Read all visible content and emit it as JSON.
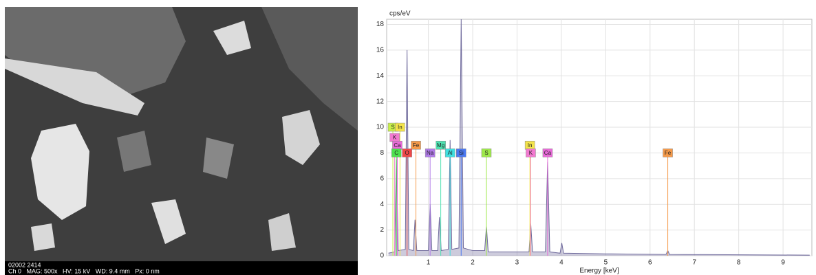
{
  "micrograph": {
    "caption_id": "02002 2414",
    "caption_info": "Ch 0   MAG: 500x   HV: 15 kV   WD: 9.4 mm   Px: 0 nm"
  },
  "chart_data": {
    "type": "line",
    "ylabel": "cps/eV",
    "xlabel": "Energy [keV]",
    "xlim": [
      0.06,
      9.65
    ],
    "ylim": [
      0,
      18.4
    ],
    "xticks": [
      1,
      2,
      3,
      4,
      5,
      6,
      7,
      8,
      9
    ],
    "yticks": [
      0,
      2,
      4,
      6,
      8,
      10,
      12,
      14,
      16,
      18
    ],
    "grid": true,
    "color": "#6f6a9c",
    "x": [
      0.1,
      0.24,
      0.28,
      0.32,
      0.48,
      0.52,
      0.56,
      0.66,
      0.7,
      0.74,
      1.0,
      1.04,
      1.08,
      1.21,
      1.25,
      1.29,
      1.45,
      1.49,
      1.53,
      1.69,
      1.74,
      1.79,
      2.0,
      2.27,
      2.31,
      2.35,
      3.0,
      3.27,
      3.31,
      3.35,
      3.64,
      3.69,
      3.74,
      3.97,
      4.01,
      4.05,
      5.0,
      6.36,
      6.4,
      6.44,
      9.6
    ],
    "values": [
      0.2,
      0.3,
      7.5,
      0.4,
      0.5,
      16,
      0.5,
      0.4,
      2.8,
      0.4,
      0.4,
      4,
      0.4,
      0.4,
      3,
      0.4,
      0.5,
      9,
      0.5,
      0.6,
      18.4,
      0.6,
      0.4,
      0.4,
      2.3,
      0.3,
      0.3,
      0.3,
      2.5,
      0.3,
      0.3,
      7.3,
      0.3,
      0.2,
      1,
      0.2,
      0.15,
      0.1,
      0.4,
      0.1,
      0.05
    ],
    "annotations": [
      {
        "text": "S",
        "x": 0.2,
        "y": 10,
        "color": "#c8f04a"
      },
      {
        "text": "In",
        "x": 0.36,
        "y": 10,
        "color": "#f4e44a"
      },
      {
        "text": "K",
        "x": 0.24,
        "y": 9.2,
        "color": "#f27ad0"
      },
      {
        "text": "Ca",
        "x": 0.3,
        "y": 8.6,
        "color": "#e86ad8"
      },
      {
        "text": "Fe",
        "x": 0.72,
        "y": 8.6,
        "color": "#f59a4a"
      },
      {
        "text": "Mg",
        "x": 1.28,
        "y": 8.6,
        "color": "#4de0b0"
      },
      {
        "text": "C",
        "x": 0.28,
        "y": 8,
        "color": "#4ee04e"
      },
      {
        "text": "O",
        "x": 0.52,
        "y": 8,
        "color": "#f04848"
      },
      {
        "text": "Na",
        "x": 1.04,
        "y": 8,
        "color": "#b07ae8"
      },
      {
        "text": "Al",
        "x": 1.49,
        "y": 8,
        "color": "#3ee0e0"
      },
      {
        "text": "Si",
        "x": 1.74,
        "y": 8,
        "color": "#4a78f0"
      },
      {
        "text": "S",
        "x": 2.31,
        "y": 8,
        "color": "#9ee84a"
      },
      {
        "text": "In",
        "x": 3.29,
        "y": 8.6,
        "color": "#f4e44a"
      },
      {
        "text": "K",
        "x": 3.31,
        "y": 8,
        "color": "#f27ad0"
      },
      {
        "text": "Ca",
        "x": 3.69,
        "y": 8,
        "color": "#e86ad8"
      },
      {
        "text": "Fe",
        "x": 6.4,
        "y": 8,
        "color": "#f59a4a"
      }
    ]
  }
}
